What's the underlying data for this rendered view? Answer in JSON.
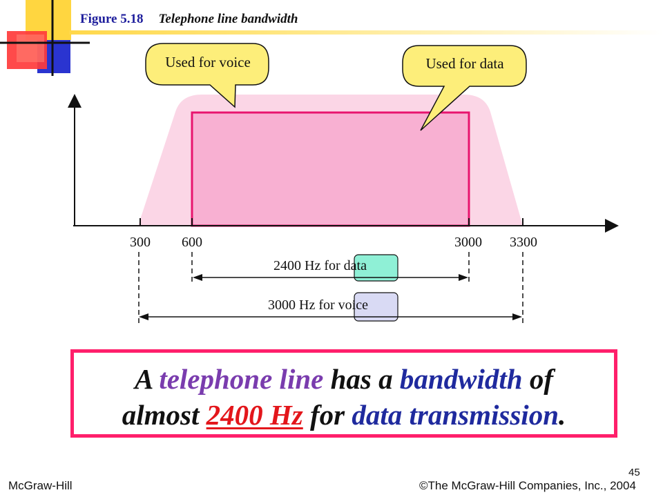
{
  "figure": {
    "number": "Figure 5.18",
    "title": "Telephone line bandwidth"
  },
  "callouts": {
    "voice": "Used for voice",
    "data": "Used for data"
  },
  "axis": {
    "ticks": [
      "300",
      "600",
      "3000",
      "3300"
    ]
  },
  "ranges": {
    "data": {
      "prefix": "2400 Hz for",
      "highlight": "data"
    },
    "voice": {
      "prefix": "3000 Hz for",
      "highlight": "voice"
    }
  },
  "summary": {
    "w1": "A",
    "w2": "telephone line",
    "w3": "has a",
    "w4": "bandwidth",
    "w5": "of",
    "w6": "almost",
    "w7": "2400 Hz",
    "w8": "for",
    "w9": "data transmission",
    "w10": "."
  },
  "footer": {
    "left": "McGraw-Hill",
    "right": "©The McGraw-Hill Companies, Inc., 2004",
    "page": "45"
  },
  "colors": {
    "voice_band": "#fbd6e6",
    "data_band": "#f8b0d2",
    "data_band_border": "#e8146e",
    "callout_fill": "#fdee7a",
    "data_highlight": "#8ff0d6",
    "voice_highlight": "#d9daf4",
    "summary_border": "#ff1f6b"
  },
  "chart_data": {
    "type": "area",
    "x_ticks": [
      300,
      600,
      3000,
      3300
    ],
    "bands": [
      {
        "label": "Used for voice",
        "from": 300,
        "to": 3300
      },
      {
        "label": "Used for data",
        "from": 600,
        "to": 3000
      }
    ]
  }
}
